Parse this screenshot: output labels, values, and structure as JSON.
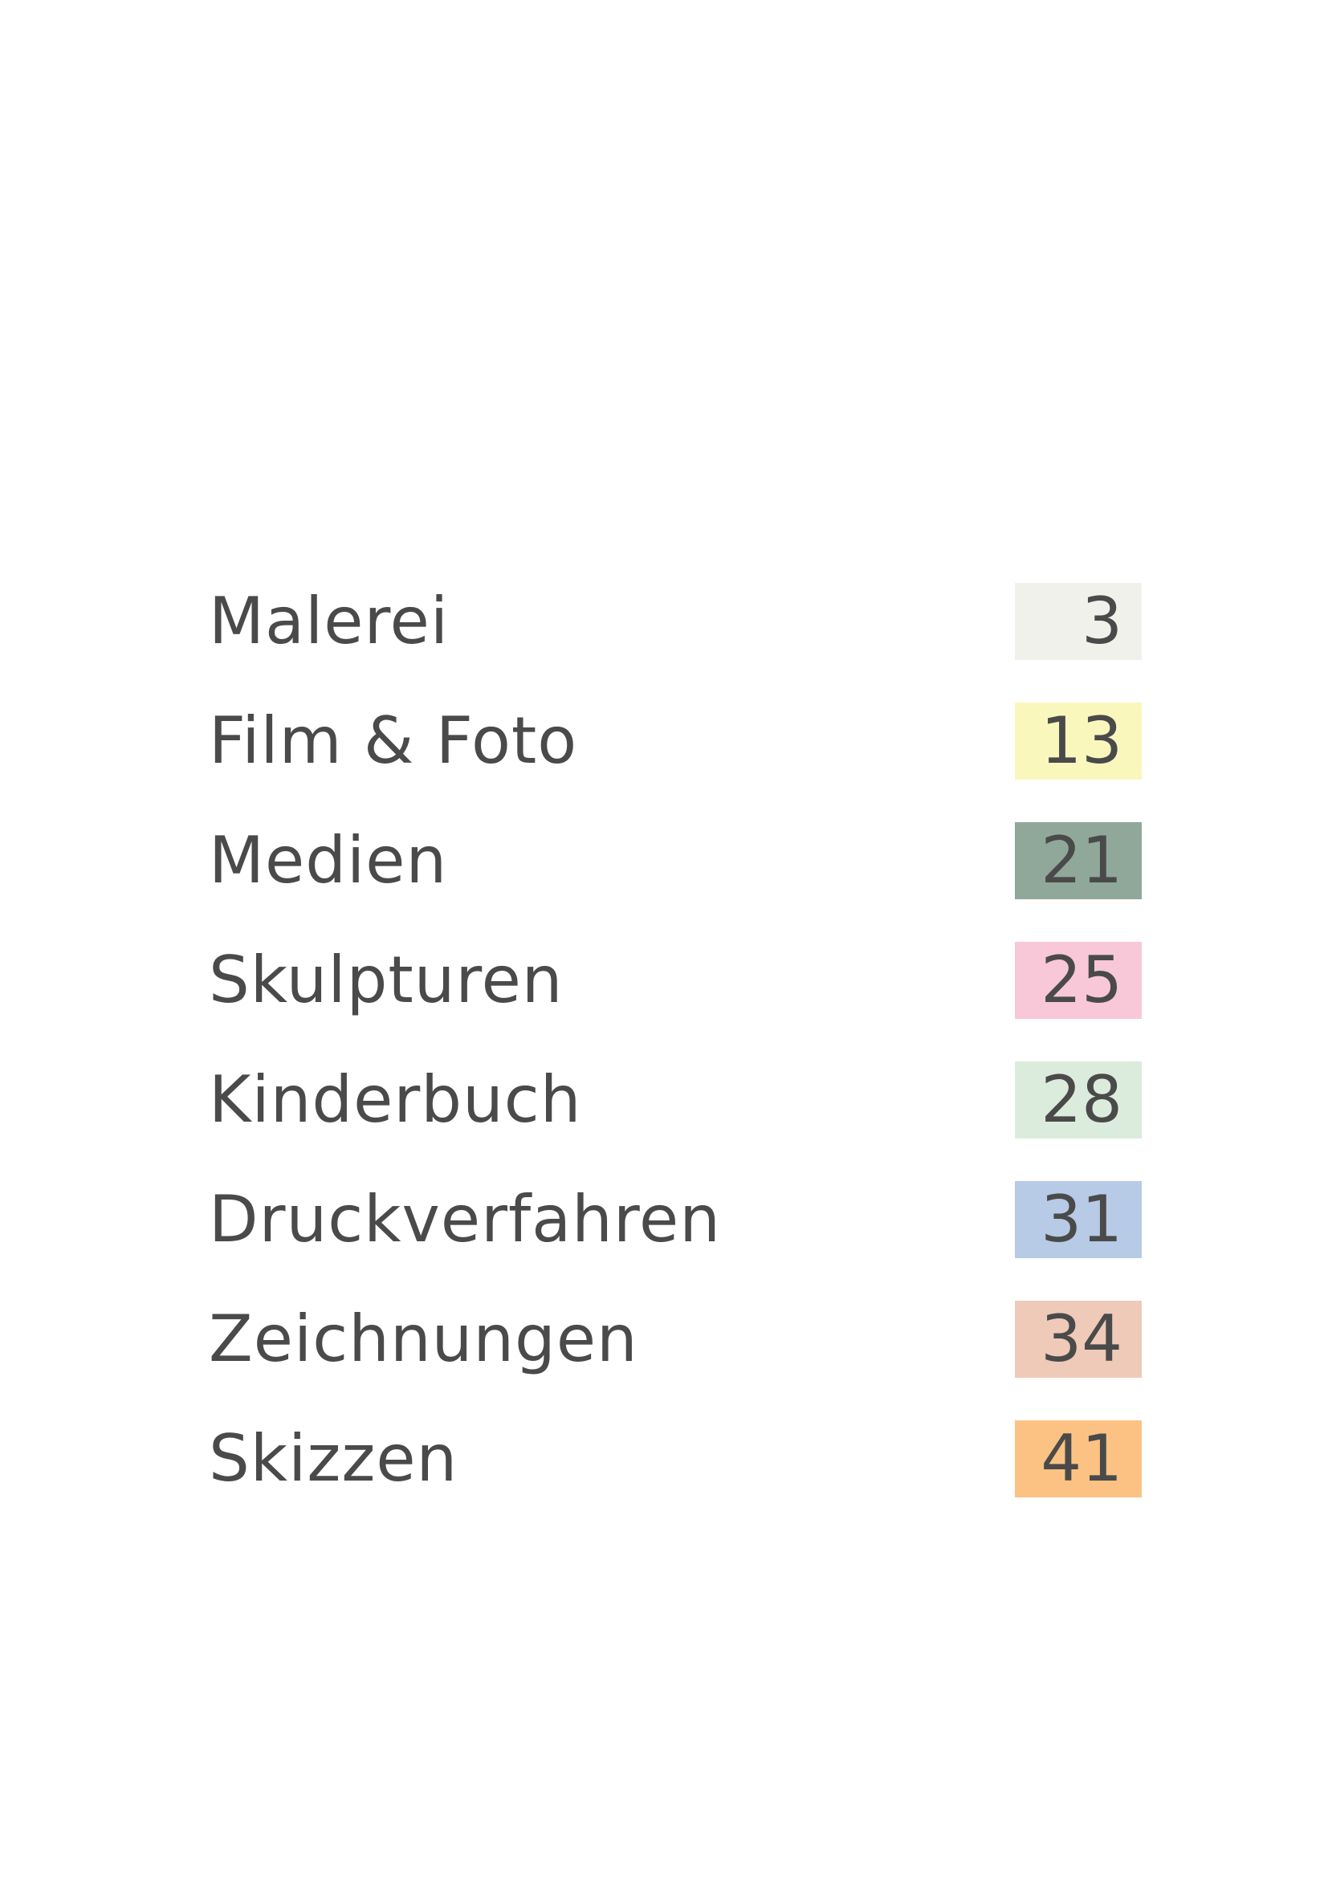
{
  "toc": {
    "items": [
      {
        "label": "Malerei",
        "page": "3",
        "color": "#f1f1ec"
      },
      {
        "label": "Film & Foto",
        "page": "13",
        "color": "#faf7bd"
      },
      {
        "label": "Medien",
        "page": "21",
        "color": "#8fa89a"
      },
      {
        "label": "Skulpturen",
        "page": "25",
        "color": "#f8c8d8"
      },
      {
        "label": "Kinderbuch",
        "page": "28",
        "color": "#dcecdc"
      },
      {
        "label": "Druckverfahren",
        "page": "31",
        "color": "#b7cae6"
      },
      {
        "label": "Zeichnungen",
        "page": "34",
        "color": "#efcab9"
      },
      {
        "label": "Skizzen",
        "page": "41",
        "color": "#fcc283"
      }
    ]
  }
}
